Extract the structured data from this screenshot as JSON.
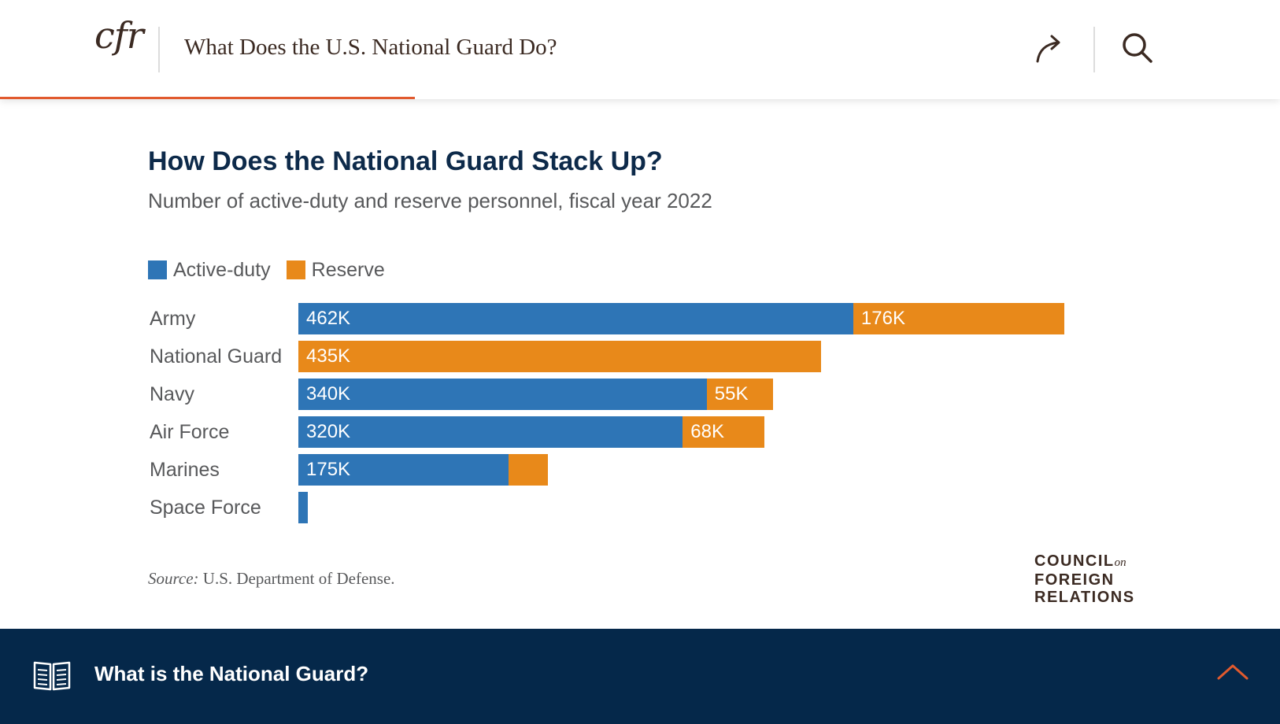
{
  "header": {
    "logo_text": "cfr",
    "title": "What Does the U.S. National Guard Do?",
    "share_icon": "share-arrow-icon",
    "search_icon": "search-icon",
    "accent_color": "#e15a2e"
  },
  "chart": {
    "title": "How Does the National Guard Stack Up?",
    "subtitle": "Number of active-duty and reserve personnel, fiscal year 2022",
    "source_label": "Source:",
    "source_text": "U.S. Department of Defense.",
    "brand_lines": [
      "COUNCIL",
      "on",
      "FOREIGN",
      "RELATIONS"
    ]
  },
  "chart_data": {
    "type": "bar",
    "orientation": "horizontal",
    "stacked": true,
    "categories": [
      "Army",
      "National Guard",
      "Navy",
      "Air Force",
      "Marines",
      "Space Force"
    ],
    "series": [
      {
        "name": "Active-duty",
        "color": "#2e75b6",
        "values": [
          462,
          0,
          340,
          320,
          175,
          8
        ]
      },
      {
        "name": "Reserve",
        "color": "#e8891a",
        "values": [
          176,
          435,
          55,
          68,
          33,
          0
        ]
      }
    ],
    "data_labels": [
      [
        "462K",
        "",
        "340K",
        "320K",
        "175K",
        ""
      ],
      [
        "176K",
        "435K",
        "55K",
        "68K",
        "",
        ""
      ]
    ],
    "unit": "thousands of personnel",
    "legend_position": "top-left",
    "grid": false
  },
  "footer": {
    "title": "What is the National Guard?",
    "book_icon": "open-book-icon",
    "chevron_icon": "chevron-up-icon",
    "background_color": "#05284a",
    "chevron_color": "#e15a2e"
  }
}
